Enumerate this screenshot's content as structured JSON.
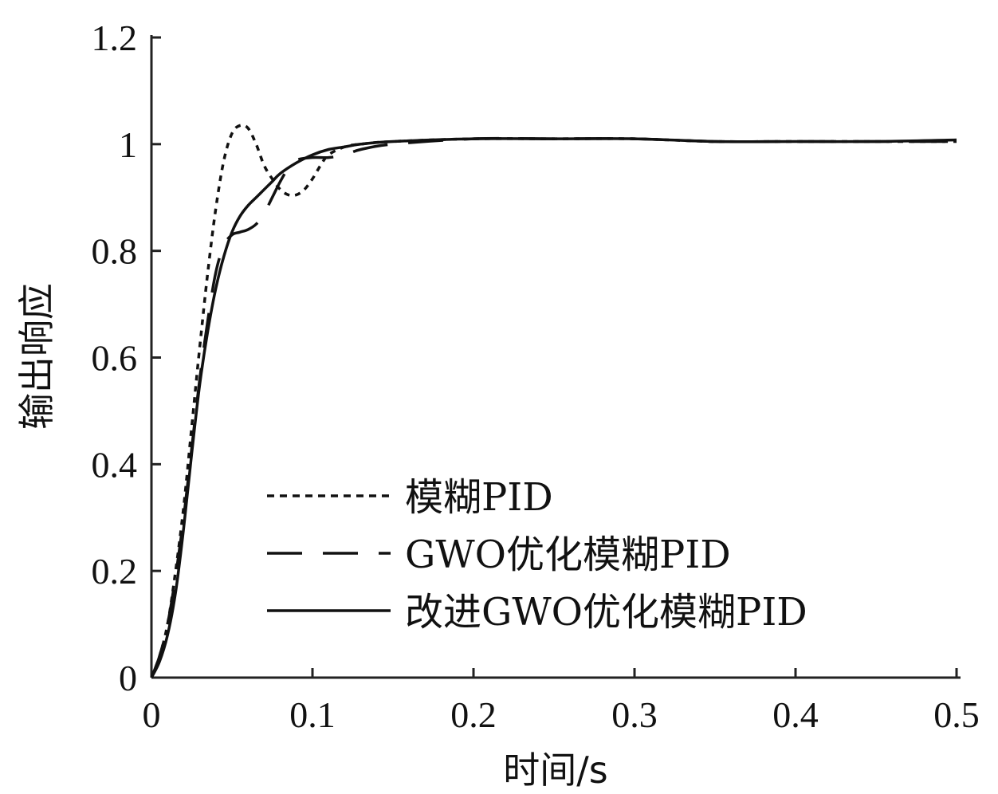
{
  "chart_data": {
    "type": "line",
    "title": "",
    "xlabel": "时间/s",
    "ylabel": "输出响应",
    "xlim": [
      0,
      0.5
    ],
    "ylim": [
      0,
      1.2
    ],
    "xticks": [
      0,
      0.1,
      0.2,
      0.3,
      0.4,
      0.5
    ],
    "yticks": [
      0,
      0.2,
      0.4,
      0.6,
      0.8,
      1,
      1.2
    ],
    "xtick_labels": [
      "0",
      "0.1",
      "0.2",
      "0.3",
      "0.4",
      "0.5"
    ],
    "ytick_labels": [
      "0",
      "0.2",
      "0.4",
      "0.6",
      "0.8",
      "1",
      "1.2"
    ],
    "grid": false,
    "legend_position": "lower-right",
    "series": [
      {
        "name": "模糊PID",
        "style": "dotted",
        "x": [
          0,
          0.005,
          0.01,
          0.015,
          0.02,
          0.025,
          0.03,
          0.035,
          0.04,
          0.045,
          0.05,
          0.055,
          0.06,
          0.065,
          0.07,
          0.075,
          0.08,
          0.085,
          0.09,
          0.095,
          0.1,
          0.105,
          0.11,
          0.12,
          0.13,
          0.15,
          0.2,
          0.25,
          0.3,
          0.35,
          0.4,
          0.45,
          0.5
        ],
        "y": [
          0,
          0.04,
          0.1,
          0.2,
          0.32,
          0.47,
          0.62,
          0.76,
          0.88,
          0.97,
          1.02,
          1.035,
          1.03,
          1.0,
          0.96,
          0.935,
          0.915,
          0.905,
          0.905,
          0.915,
          0.935,
          0.96,
          0.98,
          0.995,
          1.0,
          1.005,
          1.01,
          1.01,
          1.01,
          1.005,
          1.005,
          1.005,
          1.005
        ]
      },
      {
        "name": "GWO优化模糊PID",
        "style": "dashed",
        "x": [
          0,
          0.005,
          0.01,
          0.015,
          0.02,
          0.025,
          0.03,
          0.035,
          0.04,
          0.045,
          0.05,
          0.055,
          0.06,
          0.065,
          0.07,
          0.075,
          0.08,
          0.085,
          0.09,
          0.1,
          0.11,
          0.12,
          0.13,
          0.15,
          0.2,
          0.25,
          0.3,
          0.35,
          0.4,
          0.45,
          0.5
        ],
        "y": [
          0,
          0.04,
          0.1,
          0.19,
          0.3,
          0.43,
          0.56,
          0.67,
          0.76,
          0.81,
          0.83,
          0.835,
          0.84,
          0.85,
          0.87,
          0.9,
          0.93,
          0.955,
          0.97,
          0.975,
          0.975,
          0.98,
          0.99,
          1.0,
          1.01,
          1.01,
          1.01,
          1.005,
          1.005,
          1.005,
          1.005
        ]
      },
      {
        "name": "改进GWO优化模糊PID",
        "style": "solid",
        "x": [
          0,
          0.005,
          0.01,
          0.015,
          0.02,
          0.025,
          0.03,
          0.035,
          0.04,
          0.045,
          0.05,
          0.055,
          0.06,
          0.065,
          0.07,
          0.075,
          0.08,
          0.09,
          0.1,
          0.11,
          0.12,
          0.13,
          0.15,
          0.2,
          0.25,
          0.3,
          0.35,
          0.4,
          0.45,
          0.5
        ],
        "y": [
          0,
          0.03,
          0.08,
          0.16,
          0.28,
          0.42,
          0.55,
          0.65,
          0.73,
          0.79,
          0.835,
          0.865,
          0.885,
          0.9,
          0.915,
          0.93,
          0.945,
          0.965,
          0.98,
          0.99,
          0.995,
          1.0,
          1.005,
          1.01,
          1.01,
          1.01,
          1.005,
          1.005,
          1.005,
          1.008
        ]
      }
    ]
  }
}
